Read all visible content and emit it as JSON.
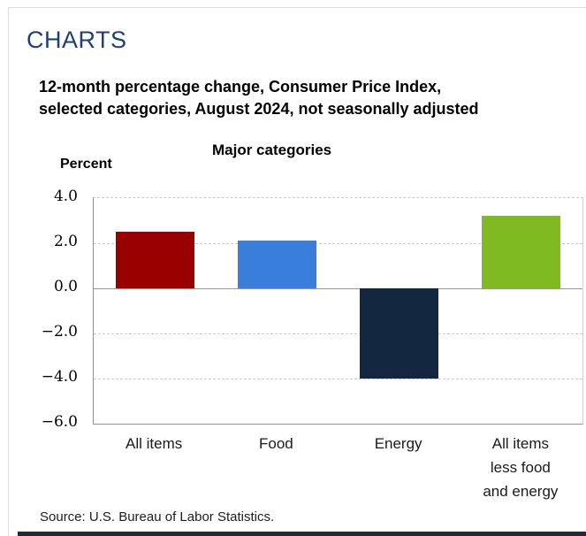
{
  "page": {
    "heading": "CHARTS",
    "source_note": "Source: U.S. Bureau of Labor Statistics."
  },
  "chart_data": {
    "type": "bar",
    "title": "12-month percentage change, Consumer Price Index, selected categories, August 2024, not seasonally adjusted",
    "title_lines": [
      "12-month percentage change, Consumer Price Index,",
      "selected categories, August 2024, not seasonally adjusted"
    ],
    "subtitle": "Major categories",
    "ylabel": "Percent",
    "xlabel": "",
    "categories": [
      "All items",
      "Food",
      "Energy",
      "All items less food and energy"
    ],
    "category_label_lines": [
      [
        "All items"
      ],
      [
        "Food"
      ],
      [
        "Energy"
      ],
      [
        "All items",
        "less food",
        "and energy"
      ]
    ],
    "values": [
      2.5,
      2.1,
      -4.0,
      3.2
    ],
    "bar_colors": [
      "#990000",
      "#3a7edc",
      "#132840",
      "#7fba22"
    ],
    "ylim": [
      -6.0,
      4.0
    ],
    "yticks": [
      4.0,
      2.0,
      0.0,
      -2.0,
      -4.0,
      -6.0
    ],
    "ytick_labels": [
      "4.0",
      "2.0",
      "0.0",
      "−2.0",
      "−4.0",
      "−6.0"
    ],
    "grid": "horizontal-dashed",
    "legend": "none"
  },
  "colors": {
    "heading": "#1f4077",
    "panel_border": "#dcdcdc",
    "grid": "#cccccc",
    "zero_line": "#999999",
    "axis": "#8f8f8f",
    "footer_bar": "#1b2b45"
  }
}
